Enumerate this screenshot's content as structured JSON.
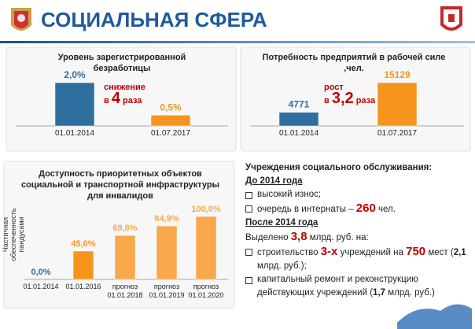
{
  "header": {
    "title": "СОЦИАЛЬНАЯ СФЕРА"
  },
  "chart_data": [
    {
      "type": "bar",
      "title": "Уровень зарегистрированной безработицы",
      "categories": [
        "01.01.2014",
        "01.07.2017"
      ],
      "values": [
        2.0,
        0.5
      ],
      "value_labels": [
        "2,0%",
        "0,5%"
      ],
      "colors": [
        "#2f6f9f",
        "#f7941d"
      ],
      "annotation": {
        "before": "снижение",
        "prefix": "в",
        "number": "4",
        "suffix": "раза"
      }
    },
    {
      "type": "bar",
      "title": "Потребность предприятий  в рабочей силе ,чел.",
      "categories": [
        "01.01.2014",
        "01.07.2017"
      ],
      "values": [
        4771,
        15129
      ],
      "colors": [
        "#2f6f9f",
        "#f7941d"
      ],
      "annotation": {
        "before": "рост",
        "prefix": "в",
        "number": "3,2",
        "suffix": "раза"
      }
    },
    {
      "type": "bar",
      "title": "Доступность приоритетных объектов социальной и транспортной инфраструктуры для инвалидов",
      "ylabel": "Частичная обеспеченность пандусами",
      "categories": [
        "01.01.2014",
        "01.01.2016",
        "прогноз 01.01.2018",
        "прогноз 01.01.2019",
        "прогноз 01.01.2020"
      ],
      "values": [
        0,
        45,
        69.8,
        84.9,
        100
      ],
      "value_labels": [
        "0,0%",
        "45,0%",
        "69,8%",
        "84,9%",
        "100,0%"
      ],
      "colors": [
        "#2f6f9f",
        "#f7941d",
        "#f9a84c",
        "#f9a84c",
        "#f9a84c"
      ]
    }
  ],
  "text": {
    "heading": "Учреждения социального обслуживания:",
    "period1": "До 2014 года",
    "items1": [
      [
        "высокий износ;"
      ],
      [
        "очередь в интернаты – ",
        "260",
        " чел."
      ]
    ],
    "period2": "После 2014 года",
    "allocated": [
      "Выделено ",
      "3,8",
      " млрд. руб. на:"
    ],
    "items2": [
      [
        "строительство ",
        "3-х",
        " учреждений на ",
        "750",
        " мест (",
        "2,1",
        " млрд. руб.);"
      ],
      [
        "капитальный ремонт и реконструкцию действующих учреждений (",
        "1,7",
        " млрд. руб.)"
      ]
    ]
  }
}
